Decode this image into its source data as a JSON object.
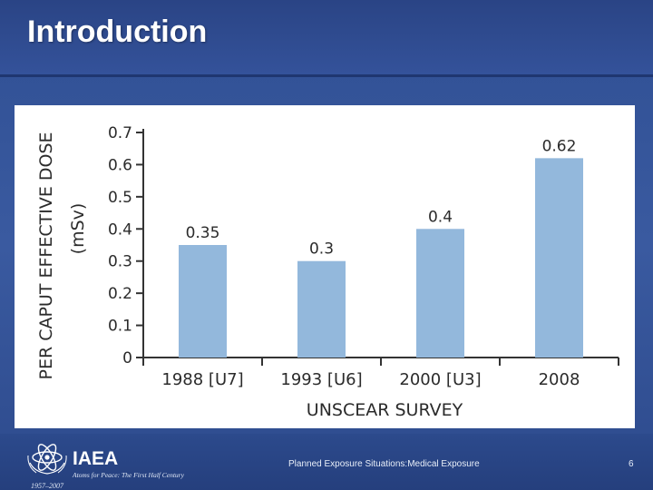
{
  "slide": {
    "title": "Introduction",
    "footer_text": "Planned Exposure Situations:Medical Exposure",
    "page_number": "6"
  },
  "logo": {
    "wordmark": "IAEA",
    "tagline": "Atoms for Peace: The First Half Century",
    "years": "1957–2007"
  },
  "colors": {
    "bar": "#93b8dc",
    "axis": "#333333",
    "text": "#2b2b2b",
    "slide_bg": "#2f4f93"
  },
  "chart_data": {
    "type": "bar",
    "categories": [
      "1988 [U7]",
      "1993 [U6]",
      "2000 [U3]",
      "2008"
    ],
    "values": [
      0.35,
      0.3,
      0.4,
      0.62
    ],
    "data_labels": [
      "0.35",
      "0.3",
      "0.4",
      "0.62"
    ],
    "xlabel": "UNSCEAR SURVEY",
    "ylabel": "PER CAPUT EFFECTIVE DOSE",
    "ylabel_unit": "(mSv)",
    "ylim": [
      0,
      0.7
    ],
    "yticks": [
      0,
      0.1,
      0.2,
      0.3,
      0.4,
      0.5,
      0.6,
      0.7
    ],
    "ytick_labels": [
      "0",
      "0.1",
      "0.2",
      "0.3",
      "0.4",
      "0.5",
      "0.6",
      "0.7"
    ],
    "grid": false,
    "legend": "none"
  }
}
